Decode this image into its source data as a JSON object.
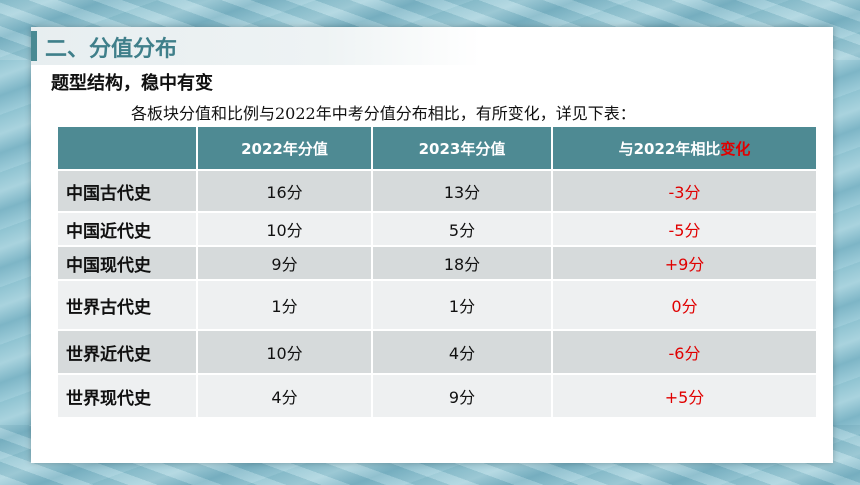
{
  "heading": "二、分值分布",
  "subheading": "题型结构，稳中有变",
  "intro": "各板块分值和比例与2022年中考分值分布相比，有所变化，详见下表：",
  "table": {
    "headers": {
      "blank": "",
      "col2022": "2022年分值",
      "col2023": "2023年分值",
      "change_prefix": "与2022年相比",
      "change_highlight": "变化"
    },
    "rows": [
      {
        "category": "中国古代史",
        "v2022": "16分",
        "v2023": "13分",
        "change": "-3分"
      },
      {
        "category": "中国近代史",
        "v2022": "10分",
        "v2023": "5分",
        "change": "-5分"
      },
      {
        "category": "中国现代史",
        "v2022": "9分",
        "v2023": "18分",
        "change": "+9分"
      },
      {
        "category": "世界古代史",
        "v2022": "1分",
        "v2023": "1分",
        "change": "0分"
      },
      {
        "category": "世界近代史",
        "v2022": "10分",
        "v2023": "4分",
        "change": "-6分"
      },
      {
        "category": "世界现代史",
        "v2022": "4分",
        "v2023": "9分",
        "change": "+5分"
      }
    ]
  },
  "colors": {
    "header_bg": "#4e8a93",
    "title_color": "#3f7f8a",
    "change_color": "#e00000"
  }
}
